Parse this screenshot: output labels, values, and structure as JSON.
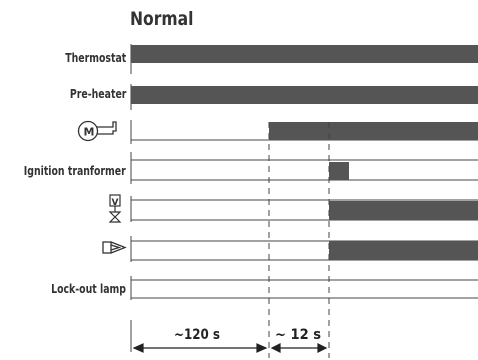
{
  "title": "Normal",
  "rows": [
    {
      "label": "Thermostat"
    },
    {
      "label": "Pre-heater"
    },
    {
      "label": "",
      "icon": "motor-icon",
      "icon_text": "M"
    },
    {
      "label": "Ignition tranformer"
    },
    {
      "label": "",
      "icon": "valve-icon",
      "icon_text": "V"
    },
    {
      "label": "",
      "icon": "flame-icon"
    },
    {
      "label": "Lock-out lamp"
    }
  ],
  "intervals": [
    {
      "label": "~120 s"
    },
    {
      "label": "~ 12 s"
    }
  ],
  "colors": {
    "bar": "#555555",
    "line": "#444444"
  }
}
